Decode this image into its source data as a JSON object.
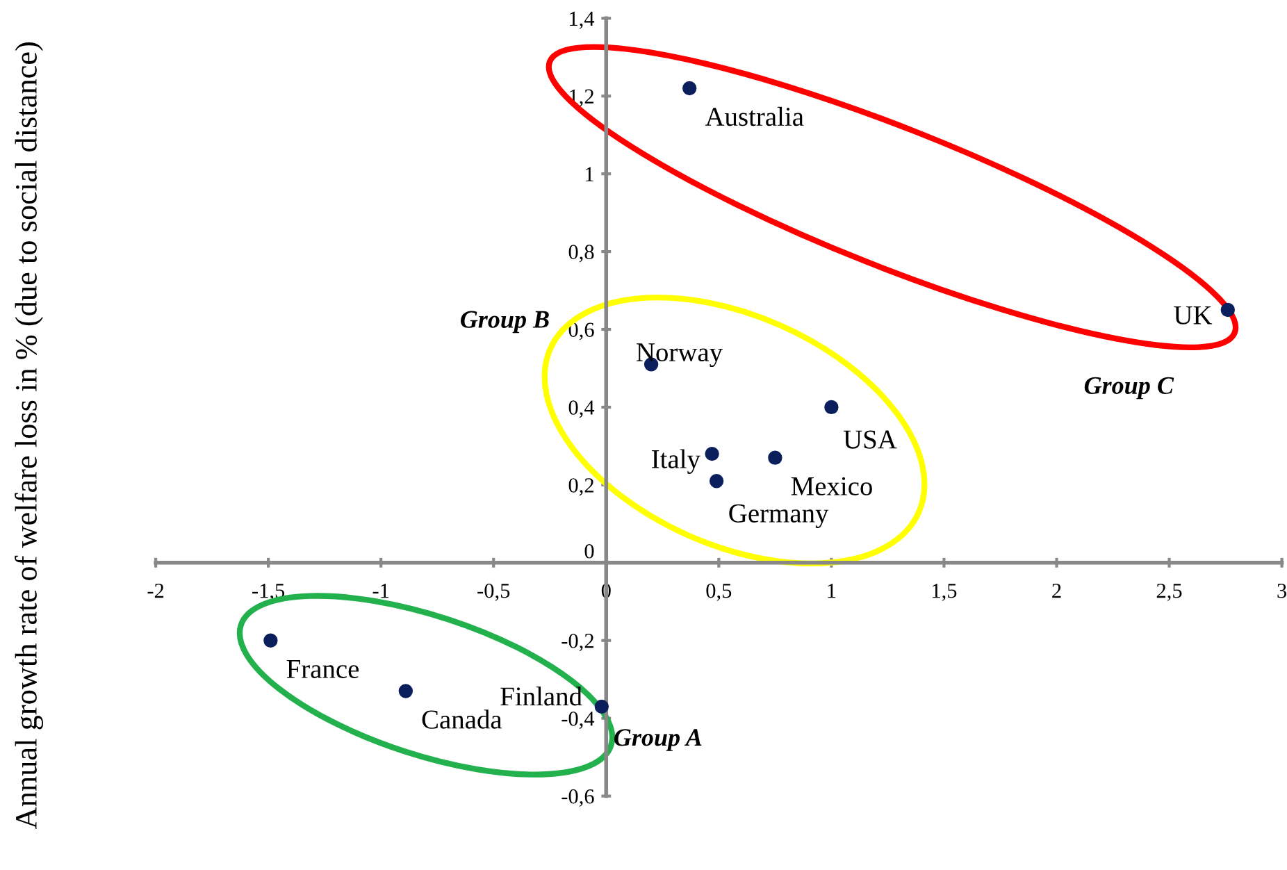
{
  "chart_data": {
    "type": "scatter",
    "ylabel": "Annual growth rate of welfare loss in % (due to social distance)",
    "xlim": [
      -2,
      3
    ],
    "ylim": [
      -0.6,
      1.4
    ],
    "xticks": [
      -2,
      {
        "value": -1.5,
        "label": "-1,5"
      },
      -1,
      {
        "value": -0.5,
        "label": "-0,5"
      },
      0,
      {
        "value": 0.5,
        "label": "0,5"
      },
      1,
      {
        "value": 1.5,
        "label": "1,5"
      },
      2,
      {
        "value": 2.5,
        "label": "2,5"
      },
      3
    ],
    "yticks": [
      {
        "value": -0.6,
        "label": "-0,6"
      },
      {
        "value": -0.4,
        "label": "-0,4"
      },
      {
        "value": -0.2,
        "label": "-0,2"
      },
      0,
      {
        "value": 0.2,
        "label": "0,2"
      },
      {
        "value": 0.4,
        "label": "0,4"
      },
      {
        "value": 0.6,
        "label": "0,6"
      },
      {
        "value": 0.8,
        "label": "0,8"
      },
      1,
      {
        "value": 1.2,
        "label": "1,2"
      },
      {
        "value": 1.4,
        "label": "1,4"
      }
    ],
    "marker": "circle",
    "grid": false,
    "legend": false,
    "series": [
      {
        "name": "Australia",
        "color": "#0a1f5c",
        "x": [
          0.37
        ],
        "values": [
          1.22
        ]
      },
      {
        "name": "UK",
        "color": "#0a1f5c",
        "x": [
          2.76
        ],
        "values": [
          0.65
        ]
      },
      {
        "name": "Norway",
        "color": "#0a1f5c",
        "x": [
          0.2
        ],
        "values": [
          0.51
        ]
      },
      {
        "name": "USA",
        "color": "#0a1f5c",
        "x": [
          1.0
        ],
        "values": [
          0.4
        ]
      },
      {
        "name": "Italy",
        "color": "#0a1f5c",
        "x": [
          0.47
        ],
        "values": [
          0.28
        ]
      },
      {
        "name": "Mexico",
        "color": "#0a1f5c",
        "x": [
          0.75
        ],
        "values": [
          0.27
        ]
      },
      {
        "name": "Germany",
        "color": "#0a1f5c",
        "x": [
          0.49
        ],
        "values": [
          0.21
        ]
      },
      {
        "name": "France",
        "color": "#0a1f5c",
        "x": [
          -1.49
        ],
        "values": [
          -0.2
        ]
      },
      {
        "name": "Canada",
        "color": "#0a1f5c",
        "x": [
          -0.89
        ],
        "values": [
          -0.33
        ]
      },
      {
        "name": "Finland",
        "color": "#0a1f5c",
        "x": [
          -0.02
        ],
        "values": [
          -0.37
        ]
      }
    ],
    "annotations": [
      "Group A",
      "Group B",
      "Group C"
    ]
  }
}
